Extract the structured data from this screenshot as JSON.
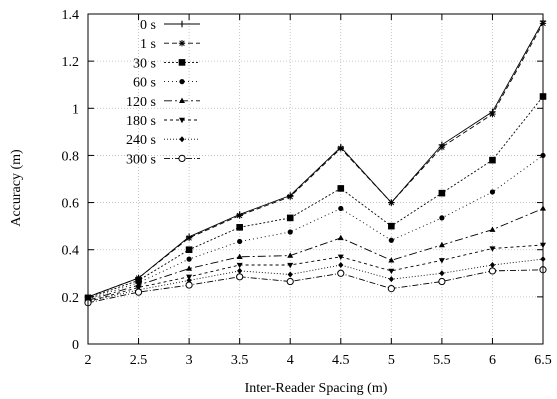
{
  "chart_data": {
    "type": "line",
    "xlabel": "Inter-Reader Spacing (m)",
    "ylabel": "Accuracy (m)",
    "xlim": [
      2,
      6.5
    ],
    "ylim": [
      0,
      1.4
    ],
    "x_ticks": [
      "2",
      "2.5",
      "3",
      "3.5",
      "4",
      "4.5",
      "5",
      "5.5",
      "6",
      "6.5"
    ],
    "y_ticks": [
      "0",
      "0.2",
      "0.4",
      "0.6",
      "0.8",
      "1",
      "1.2",
      "1.4"
    ],
    "grid": true,
    "legend_position": "top-left",
    "x": [
      2,
      2.5,
      3,
      3.5,
      4,
      4.5,
      5,
      5.5,
      6,
      6.5
    ],
    "series": [
      {
        "name": "0 s",
        "values": [
          0.2,
          0.28,
          0.455,
          0.55,
          0.63,
          0.835,
          0.6,
          0.845,
          0.985,
          1.37
        ],
        "dash": "none",
        "marker": "plus"
      },
      {
        "name": "1 s",
        "values": [
          0.2,
          0.28,
          0.45,
          0.545,
          0.625,
          0.83,
          0.6,
          0.835,
          0.975,
          1.36
        ],
        "dash": "5,3",
        "marker": "star"
      },
      {
        "name": "30 s",
        "values": [
          0.195,
          0.27,
          0.4,
          0.495,
          0.535,
          0.66,
          0.5,
          0.64,
          0.78,
          1.05
        ],
        "dash": "2,2",
        "marker": "square"
      },
      {
        "name": "60 s",
        "values": [
          0.19,
          0.26,
          0.36,
          0.435,
          0.475,
          0.575,
          0.44,
          0.535,
          0.645,
          0.8
        ],
        "dash": "1,3",
        "marker": "dot"
      },
      {
        "name": "120 s",
        "values": [
          0.185,
          0.25,
          0.32,
          0.37,
          0.375,
          0.45,
          0.355,
          0.42,
          0.485,
          0.575
        ],
        "dash": "8,3,2,3",
        "marker": "triangle"
      },
      {
        "name": "180 s",
        "values": [
          0.18,
          0.24,
          0.285,
          0.335,
          0.335,
          0.37,
          0.31,
          0.355,
          0.405,
          0.42
        ],
        "dash": "3,3",
        "marker": "tri-down"
      },
      {
        "name": "240 s",
        "values": [
          0.18,
          0.23,
          0.27,
          0.31,
          0.295,
          0.335,
          0.275,
          0.3,
          0.335,
          0.36
        ],
        "dash": "1,2",
        "marker": "diamond"
      },
      {
        "name": "300 s",
        "values": [
          0.175,
          0.22,
          0.25,
          0.285,
          0.265,
          0.3,
          0.235,
          0.265,
          0.31,
          0.315
        ],
        "dash": "6,2,1,2",
        "marker": "circle"
      }
    ]
  }
}
